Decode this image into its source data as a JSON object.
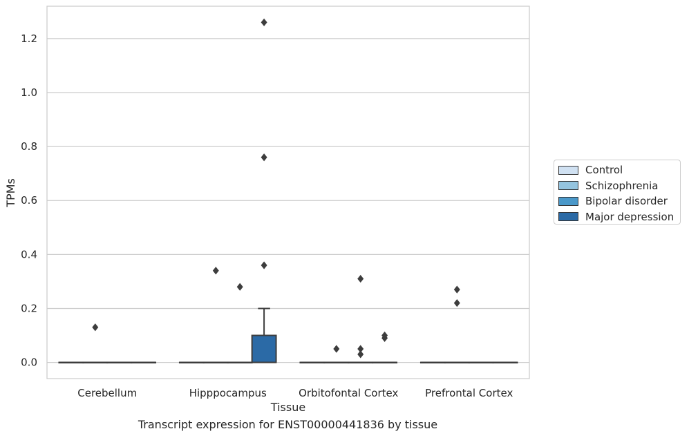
{
  "chart_data": {
    "type": "box",
    "title": "",
    "caption": "Transcript expression for ENST00000441836 by tissue",
    "xlabel": "Tissue",
    "ylabel": "TPMs",
    "ylim": [
      -0.06,
      1.32
    ],
    "yticks": [
      0.0,
      0.2,
      0.4,
      0.6,
      0.8,
      1.0,
      1.2
    ],
    "ytick_labels": [
      "0.0",
      "0.2",
      "0.4",
      "0.6",
      "0.8",
      "1.0",
      "1.2"
    ],
    "grid": "horizontal",
    "legend_position": "right",
    "categories": [
      "Cerebellum",
      "Hipppocampus",
      "Orbitofontal Cortex",
      "Prefrontal Cortex"
    ],
    "series": [
      {
        "name": "Control",
        "color": "#d0e1f2",
        "boxes": [
          {
            "q1": 0,
            "median": 0,
            "q3": 0,
            "whisker_low": 0,
            "whisker_high": 0,
            "outliers": []
          },
          {
            "q1": 0,
            "median": 0,
            "q3": 0,
            "whisker_low": 0,
            "whisker_high": 0,
            "outliers": []
          },
          {
            "q1": 0,
            "median": 0,
            "q3": 0,
            "whisker_low": 0,
            "whisker_high": 0,
            "outliers": []
          },
          {
            "q1": 0,
            "median": 0,
            "q3": 0,
            "whisker_low": 0,
            "whisker_high": 0,
            "outliers": []
          }
        ]
      },
      {
        "name": "Schizophrenia",
        "color": "#94c4df",
        "boxes": [
          {
            "q1": 0,
            "median": 0,
            "q3": 0,
            "whisker_low": 0,
            "whisker_high": 0,
            "outliers": [
              0.13
            ]
          },
          {
            "q1": 0,
            "median": 0,
            "q3": 0,
            "whisker_low": 0,
            "whisker_high": 0,
            "outliers": [
              0.34
            ]
          },
          {
            "q1": 0,
            "median": 0,
            "q3": 0,
            "whisker_low": 0,
            "whisker_high": 0,
            "outliers": [
              0.05
            ]
          },
          {
            "q1": 0,
            "median": 0,
            "q3": 0,
            "whisker_low": 0,
            "whisker_high": 0,
            "outliers": [
              0.27,
              0.22
            ]
          }
        ]
      },
      {
        "name": "Bipolar disorder",
        "color": "#4a98c9",
        "boxes": [
          {
            "q1": 0,
            "median": 0,
            "q3": 0,
            "whisker_low": 0,
            "whisker_high": 0,
            "outliers": []
          },
          {
            "q1": 0,
            "median": 0,
            "q3": 0,
            "whisker_low": 0,
            "whisker_high": 0,
            "outliers": [
              0.28
            ]
          },
          {
            "q1": 0,
            "median": 0,
            "q3": 0,
            "whisker_low": 0,
            "whisker_high": 0,
            "outliers": [
              0.31,
              0.05,
              0.03
            ]
          },
          {
            "q1": 0,
            "median": 0,
            "q3": 0,
            "whisker_low": 0,
            "whisker_high": 0,
            "outliers": []
          }
        ]
      },
      {
        "name": "Major depression",
        "color": "#2b6aa6",
        "boxes": [
          {
            "q1": 0,
            "median": 0,
            "q3": 0,
            "whisker_low": 0,
            "whisker_high": 0,
            "outliers": []
          },
          {
            "q1": 0,
            "median": 0,
            "q3": 0.1,
            "whisker_low": 0,
            "whisker_high": 0.2,
            "outliers": [
              1.26,
              0.76,
              0.36
            ]
          },
          {
            "q1": 0,
            "median": 0,
            "q3": 0,
            "whisker_low": 0,
            "whisker_high": 0,
            "outliers": [
              0.1,
              0.09
            ]
          },
          {
            "q1": 0,
            "median": 0,
            "q3": 0,
            "whisker_low": 0,
            "whisker_high": 0,
            "outliers": []
          }
        ]
      }
    ]
  }
}
